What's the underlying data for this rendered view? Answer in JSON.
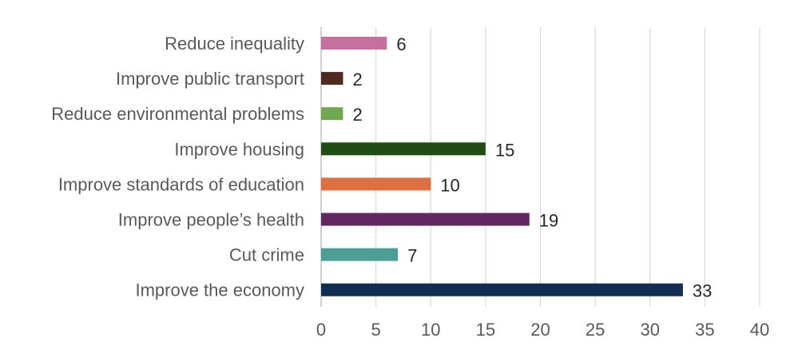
{
  "chart_data": {
    "type": "bar",
    "orientation": "horizontal",
    "categories": [
      "Reduce inequality",
      "Improve public transport",
      "Reduce environmental problems",
      "Improve housing",
      "Improve standards of education",
      "Improve people’s health",
      "Cut crime",
      "Improve the economy"
    ],
    "values": [
      6,
      2,
      2,
      15,
      10,
      19,
      7,
      33
    ],
    "data_labels": [
      "6",
      "2",
      "2",
      "15",
      "10",
      "19",
      "7",
      "33"
    ],
    "colors": [
      "#c5709f",
      "#4f2a1e",
      "#6fa84e",
      "#1f4d14",
      "#de6f40",
      "#612763",
      "#4b9e96",
      "#102d54"
    ],
    "xlim": [
      0,
      40
    ],
    "x_ticks": [
      0,
      5,
      10,
      15,
      20,
      25,
      30,
      35,
      40
    ],
    "x_tick_labels": [
      "0",
      "5",
      "10",
      "15",
      "20",
      "25",
      "30",
      "35",
      "40"
    ],
    "grid": "vertical",
    "legend": "none"
  }
}
